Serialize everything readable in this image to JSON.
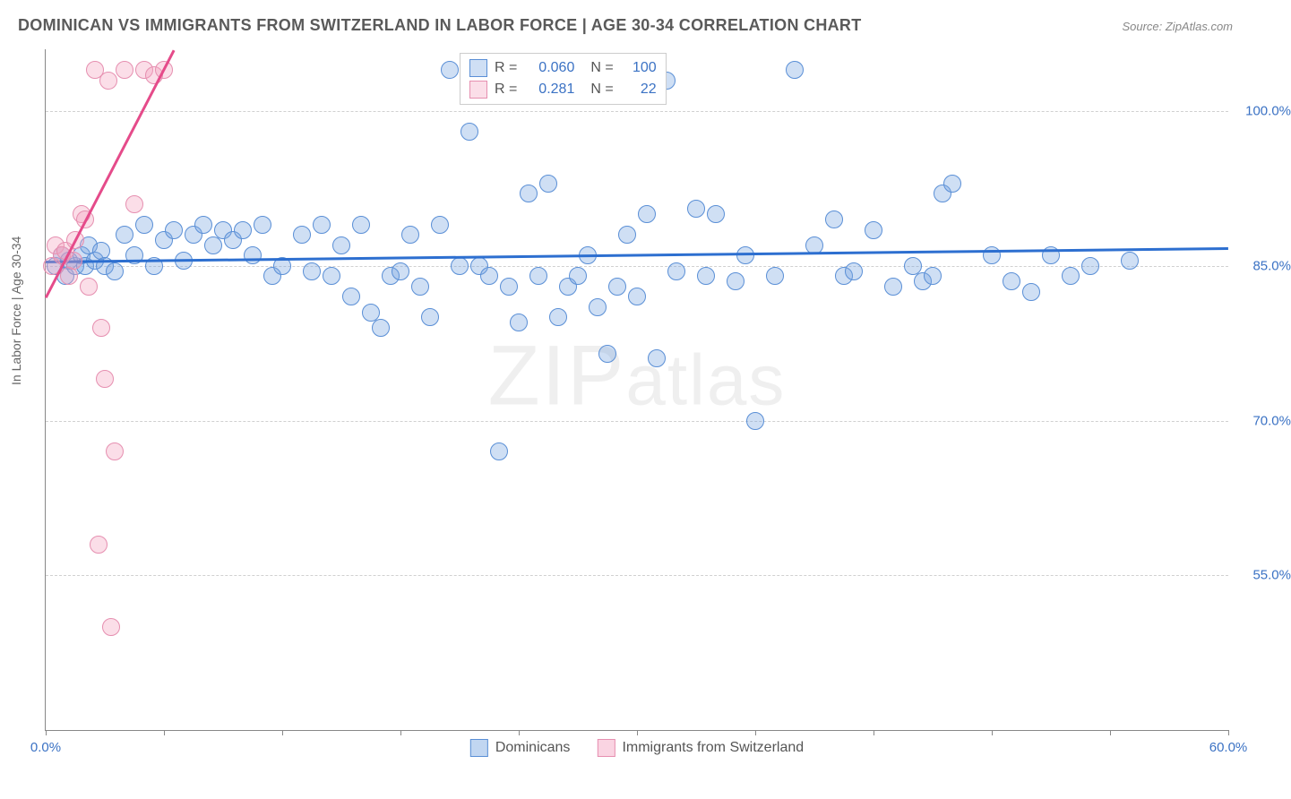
{
  "title": "DOMINICAN VS IMMIGRANTS FROM SWITZERLAND IN LABOR FORCE | AGE 30-34 CORRELATION CHART",
  "source": "Source: ZipAtlas.com",
  "ylabel": "In Labor Force | Age 30-34",
  "watermark": "ZIPatlas",
  "chart": {
    "type": "scatter",
    "background_color": "#ffffff",
    "grid_color": "#d0d0d0",
    "axis_color": "#888888",
    "label_color": "#3b72c4",
    "xlim": [
      0,
      60
    ],
    "ylim": [
      40,
      106
    ],
    "xticks": [
      0,
      6,
      12,
      18,
      24,
      30,
      36,
      42,
      48,
      54,
      60
    ],
    "xtick_labels": {
      "0": "0.0%",
      "60": "60.0%"
    },
    "yticks": [
      55,
      70,
      85,
      100
    ],
    "ytick_labels": {
      "55": "55.0%",
      "70": "70.0%",
      "85": "85.0%",
      "100": "100.0%"
    },
    "marker_radius": 10,
    "marker_stroke": 1.5,
    "series": [
      {
        "name": "Dominicans",
        "fill": "rgba(117,163,224,0.35)",
        "stroke": "#5a8fd6",
        "trend_color": "#2d6fd0",
        "r": "0.060",
        "n": "100",
        "trend": {
          "x1": 0,
          "y1": 85.5,
          "x2": 60,
          "y2": 86.8
        },
        "points": [
          [
            0.5,
            85
          ],
          [
            0.8,
            86
          ],
          [
            1,
            84
          ],
          [
            1.2,
            85.5
          ],
          [
            1.5,
            85
          ],
          [
            1.8,
            86
          ],
          [
            2,
            85
          ],
          [
            2.2,
            87
          ],
          [
            2.5,
            85.5
          ],
          [
            2.8,
            86.5
          ],
          [
            3,
            85
          ],
          [
            3.5,
            84.5
          ],
          [
            4,
            88
          ],
          [
            4.5,
            86
          ],
          [
            5,
            89
          ],
          [
            5.5,
            85
          ],
          [
            6,
            87.5
          ],
          [
            6.5,
            88.5
          ],
          [
            7,
            85.5
          ],
          [
            7.5,
            88
          ],
          [
            8,
            89
          ],
          [
            8.5,
            87
          ],
          [
            9,
            88.5
          ],
          [
            9.5,
            87.5
          ],
          [
            10,
            88.5
          ],
          [
            10.5,
            86
          ],
          [
            11,
            89
          ],
          [
            11.5,
            84
          ],
          [
            12,
            85
          ],
          [
            13,
            88
          ],
          [
            13.5,
            84.5
          ],
          [
            14,
            89
          ],
          [
            14.5,
            84
          ],
          [
            15,
            87
          ],
          [
            15.5,
            82
          ],
          [
            16,
            89
          ],
          [
            16.5,
            80.5
          ],
          [
            17,
            79
          ],
          [
            17.5,
            84
          ],
          [
            18,
            84.5
          ],
          [
            18.5,
            88
          ],
          [
            19,
            83
          ],
          [
            19.5,
            80
          ],
          [
            20,
            89
          ],
          [
            20.5,
            104
          ],
          [
            21,
            85
          ],
          [
            21.5,
            98
          ],
          [
            22,
            85
          ],
          [
            22.5,
            84
          ],
          [
            23,
            67
          ],
          [
            23.5,
            83
          ],
          [
            24,
            79.5
          ],
          [
            24.5,
            92
          ],
          [
            25,
            84
          ],
          [
            25.5,
            93
          ],
          [
            26,
            80
          ],
          [
            26.5,
            83
          ],
          [
            27,
            84
          ],
          [
            27.5,
            86
          ],
          [
            28,
            81
          ],
          [
            28.5,
            76.5
          ],
          [
            29,
            83
          ],
          [
            29.5,
            88
          ],
          [
            30,
            82
          ],
          [
            30.5,
            90
          ],
          [
            31,
            76
          ],
          [
            31.5,
            103
          ],
          [
            32,
            84.5
          ],
          [
            33,
            90.5
          ],
          [
            33.5,
            84
          ],
          [
            34,
            90
          ],
          [
            35,
            83.5
          ],
          [
            35.5,
            86
          ],
          [
            36,
            70
          ],
          [
            37,
            84
          ],
          [
            38,
            104
          ],
          [
            39,
            87
          ],
          [
            40,
            89.5
          ],
          [
            40.5,
            84
          ],
          [
            41,
            84.5
          ],
          [
            42,
            88.5
          ],
          [
            43,
            83
          ],
          [
            44,
            85
          ],
          [
            44.5,
            83.5
          ],
          [
            45,
            84
          ],
          [
            45.5,
            92
          ],
          [
            46,
            93
          ],
          [
            48,
            86
          ],
          [
            49,
            83.5
          ],
          [
            50,
            82.5
          ],
          [
            51,
            86
          ],
          [
            52,
            84
          ],
          [
            53,
            85
          ],
          [
            55,
            85.5
          ]
        ]
      },
      {
        "name": "Immigrants from Switzerland",
        "fill": "rgba(244,160,190,0.35)",
        "stroke": "#e68fb0",
        "trend_color": "#e54b8a",
        "r": "0.281",
        "n": "22",
        "trend": {
          "x1": 0,
          "y1": 82,
          "x2": 6.5,
          "y2": 106
        },
        "points": [
          [
            0.3,
            85
          ],
          [
            0.5,
            87
          ],
          [
            0.8,
            86
          ],
          [
            1,
            86.5
          ],
          [
            1.2,
            84
          ],
          [
            1.4,
            85.5
          ],
          [
            1.5,
            87.5
          ],
          [
            1.8,
            90
          ],
          [
            2,
            89.5
          ],
          [
            2.2,
            83
          ],
          [
            2.5,
            104
          ],
          [
            2.8,
            79
          ],
          [
            3,
            74
          ],
          [
            3.2,
            103
          ],
          [
            3.5,
            67
          ],
          [
            4,
            104
          ],
          [
            4.5,
            91
          ],
          [
            5,
            104
          ],
          [
            5.5,
            103.5
          ],
          [
            6,
            104
          ],
          [
            2.7,
            58
          ],
          [
            3.3,
            50
          ]
        ]
      }
    ]
  },
  "legend_top": {
    "r_label": "R =",
    "n_label": "N ="
  },
  "legend_bottom": [
    {
      "label": "Dominicans",
      "fill": "rgba(117,163,224,0.45)",
      "stroke": "#5a8fd6"
    },
    {
      "label": "Immigrants from Switzerland",
      "fill": "rgba(244,160,190,0.45)",
      "stroke": "#e68fb0"
    }
  ]
}
